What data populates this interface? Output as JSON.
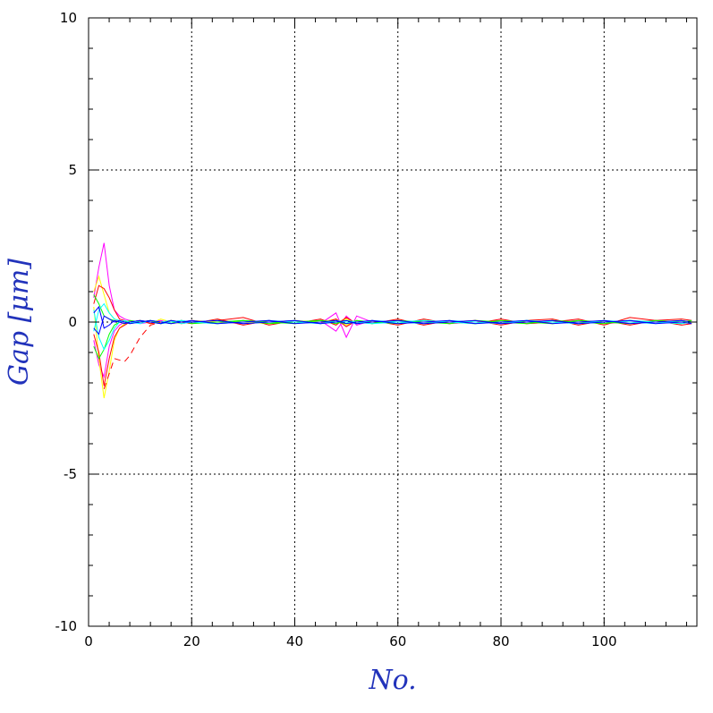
{
  "chart_data": {
    "type": "line",
    "title": "",
    "xlabel": "No.",
    "ylabel": "Gap [μm]",
    "xlim": [
      0,
      118
    ],
    "ylim": [
      -10,
      10
    ],
    "grid": true,
    "x_major_ticks": [
      0,
      20,
      40,
      60,
      80,
      100
    ],
    "x_tick_labels": [
      "0",
      "20",
      "40",
      "60",
      "80",
      "100"
    ],
    "y_major_ticks": [
      -10,
      -5,
      0,
      5,
      10
    ],
    "y_tick_labels": [
      "-10",
      "-5",
      "0",
      "5",
      "10"
    ],
    "x": [
      1,
      2,
      3,
      4,
      5,
      6,
      7,
      8,
      10,
      12,
      14,
      16,
      18,
      20,
      25,
      30,
      35,
      40,
      45,
      48,
      50,
      52,
      55,
      60,
      65,
      70,
      75,
      80,
      85,
      90,
      95,
      100,
      105,
      110,
      115,
      117
    ],
    "series": [
      {
        "color": "#ff00ff",
        "values": [
          0.8,
          1.8,
          2.6,
          1.2,
          0.4,
          0.2,
          0.1,
          0.05,
          0.0,
          0.05,
          -0.05,
          0.0,
          0.05,
          0.0,
          -0.05,
          0.05,
          0.0,
          0.05,
          -0.05,
          0.3,
          -0.5,
          0.2,
          0.0,
          0.05,
          -0.05,
          0.0,
          0.05,
          -0.05,
          0.0,
          0.05,
          -0.05,
          0.0,
          0.05,
          0.0,
          -0.05,
          0.0
        ]
      },
      {
        "color": "#ff00ff",
        "values": [
          -0.6,
          -1.4,
          -1.8,
          -0.8,
          -0.3,
          -0.1,
          0.0,
          0.05,
          -0.05,
          0.0,
          0.05,
          -0.05,
          0.0,
          0.05,
          0.0,
          -0.05,
          0.05,
          0.0,
          0.05,
          -0.3,
          0.2,
          -0.1,
          0.05,
          0.0,
          0.05,
          -0.05,
          0.0,
          0.05,
          -0.05,
          0.0,
          0.05,
          -0.05,
          0.0,
          0.05,
          -0.05,
          0.0
        ]
      },
      {
        "color": "#ffff00",
        "values": [
          0.5,
          -1.2,
          -2.5,
          -1.6,
          -0.6,
          -0.2,
          -0.05,
          0.0,
          0.05,
          -0.05,
          0.1,
          0.0,
          -0.05,
          0.05,
          0.0,
          0.05,
          -0.05,
          0.0,
          0.05,
          0.0,
          0.1,
          -0.05,
          0.0,
          0.05,
          -0.05,
          0.0,
          0.05,
          0.0,
          -0.05,
          0.05,
          0.0,
          -0.05,
          0.05,
          0.0,
          0.05,
          0.0
        ]
      },
      {
        "color": "#ffff00",
        "values": [
          1.0,
          1.5,
          0.9,
          0.3,
          0.1,
          0.0,
          -0.05,
          0.05,
          0.0,
          0.05,
          -0.05,
          0.05,
          0.0,
          -0.05,
          0.05,
          0.0,
          -0.05,
          0.05,
          0.0,
          0.1,
          -0.1,
          0.05,
          0.0,
          -0.05,
          0.05,
          0.0,
          -0.05,
          0.05,
          0.0,
          -0.05,
          0.05,
          0.0,
          -0.05,
          0.05,
          0.0,
          0.0
        ]
      },
      {
        "color": "#ff0000",
        "values": [
          0.6,
          1.2,
          1.1,
          0.8,
          0.4,
          0.1,
          0.05,
          0.0,
          0.05,
          -0.05,
          0.0,
          0.05,
          -0.05,
          0.0,
          0.05,
          0.15,
          -0.1,
          0.05,
          -0.05,
          0.1,
          -0.15,
          0.05,
          -0.05,
          0.1,
          -0.1,
          0.05,
          -0.05,
          0.1,
          -0.05,
          0.0,
          0.1,
          -0.1,
          0.15,
          0.05,
          0.1,
          0.05
        ]
      },
      {
        "color": "#ff0000",
        "values": [
          -0.4,
          -1.0,
          -2.1,
          -1.2,
          -0.5,
          -0.2,
          -0.1,
          0.0,
          0.05,
          0.0,
          -0.05,
          0.05,
          0.0,
          -0.05,
          0.1,
          -0.1,
          0.05,
          -0.05,
          0.1,
          -0.1,
          0.15,
          -0.05,
          0.05,
          -0.1,
          0.1,
          -0.05,
          0.05,
          -0.1,
          0.05,
          0.1,
          -0.1,
          0.05,
          -0.1,
          0.05,
          -0.1,
          -0.05
        ]
      },
      {
        "color": "#00ff00",
        "values": [
          0.9,
          0.6,
          0.2,
          0.1,
          0.05,
          0.0,
          -0.05,
          0.05,
          0.0,
          0.05,
          -0.05,
          0.0,
          0.05,
          -0.05,
          0.0,
          0.05,
          -0.05,
          0.0,
          0.05,
          0.0,
          -0.05,
          0.05,
          0.0,
          -0.05,
          0.05,
          0.0,
          -0.05,
          0.05,
          0.0,
          -0.05,
          0.05,
          0.0,
          -0.05,
          0.05,
          0.0,
          0.05
        ]
      },
      {
        "color": "#00ff00",
        "values": [
          -0.8,
          -1.2,
          -0.9,
          -0.4,
          -0.1,
          0.0,
          0.05,
          -0.05,
          0.0,
          0.05,
          0.0,
          -0.05,
          0.05,
          0.0,
          -0.05,
          0.05,
          0.0,
          -0.05,
          0.05,
          -0.05,
          0.05,
          0.0,
          -0.05,
          0.05,
          0.0,
          -0.05,
          0.05,
          0.0,
          -0.05,
          0.05,
          0.0,
          -0.05,
          0.05,
          0.0,
          -0.05,
          0.0
        ]
      },
      {
        "color": "#00ffff",
        "values": [
          0.4,
          -0.5,
          -0.9,
          -0.6,
          -0.2,
          0.0,
          0.05,
          0.0,
          -0.05,
          0.05,
          0.0,
          0.05,
          -0.05,
          0.0,
          0.05,
          -0.05,
          0.0,
          0.05,
          -0.05,
          0.05,
          0.0,
          -0.05,
          0.05,
          0.0,
          -0.05,
          0.05,
          0.0,
          -0.05,
          0.05,
          0.0,
          -0.05,
          0.05,
          0.0,
          -0.05,
          0.05,
          0.0
        ]
      },
      {
        "color": "#00ffff",
        "values": [
          -0.3,
          0.4,
          0.6,
          0.3,
          0.1,
          0.05,
          0.0,
          -0.05,
          0.05,
          0.0,
          -0.05,
          0.0,
          0.05,
          0.0,
          -0.05,
          0.0,
          0.05,
          0.0,
          -0.05,
          0.0,
          0.05,
          0.0,
          -0.05,
          0.0,
          0.05,
          0.0,
          -0.05,
          0.0,
          0.05,
          0.0,
          -0.05,
          0.0,
          0.05,
          0.0,
          -0.05,
          0.0
        ]
      },
      {
        "color": "#0000ff",
        "values": [
          0.3,
          0.5,
          -0.2,
          -0.1,
          0.05,
          0.0,
          -0.05,
          0.0,
          0.05,
          0.0,
          -0.05,
          0.05,
          0.0,
          0.05,
          -0.05,
          0.0,
          0.05,
          -0.05,
          0.0,
          0.05,
          -0.05,
          0.0,
          0.05,
          -0.05,
          0.0,
          0.05,
          -0.05,
          0.0,
          0.05,
          -0.05,
          0.0,
          0.05,
          -0.05,
          0.0,
          0.05,
          0.0
        ]
      },
      {
        "color": "#0000ff",
        "values": [
          -0.2,
          -0.4,
          0.2,
          0.1,
          0.0,
          0.05,
          0.0,
          -0.05,
          0.0,
          0.05,
          0.0,
          -0.05,
          0.0,
          0.0,
          0.05,
          -0.05,
          0.0,
          0.05,
          -0.05,
          0.0,
          0.05,
          -0.05,
          0.0,
          0.05,
          -0.05,
          0.0,
          0.05,
          -0.05,
          0.0,
          0.05,
          -0.05,
          0.0,
          0.05,
          -0.05,
          0.0,
          -0.05
        ]
      }
    ],
    "dashed_series": {
      "color": "#ff0000",
      "x": [
        3,
        5,
        7,
        8,
        10,
        12,
        14
      ],
      "values": [
        -2.2,
        -1.2,
        -1.3,
        -1.1,
        -0.5,
        -0.1,
        0.0
      ]
    }
  }
}
